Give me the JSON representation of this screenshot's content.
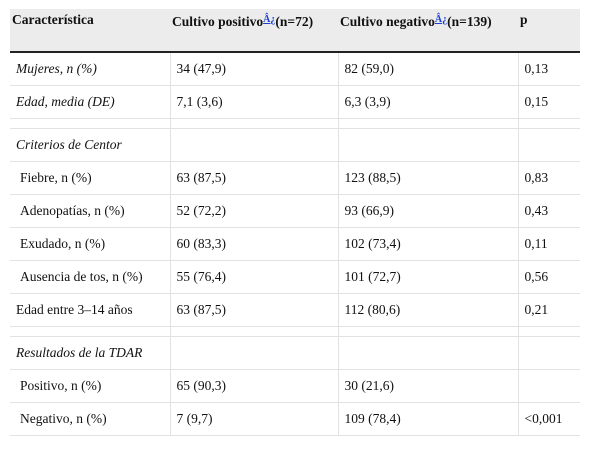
{
  "table": {
    "header": [
      {
        "text": "Característica"
      },
      {
        "text": "Cultivo positivo",
        "note": "Â¿",
        "n": "(n=72)"
      },
      {
        "text": "Cultivo negativo",
        "note": "Â¿",
        "n": "(n=139)"
      },
      {
        "text": "p"
      }
    ],
    "groups": [
      {
        "rows": [
          {
            "cells": [
              "Mujeres, n (%)",
              "34 (47,9)",
              "82 (59,0)",
              "0,13"
            ],
            "italic": true
          },
          {
            "cells": [
              "Edad, media (DE)",
              "7,1 (3,6)",
              "6,3 (3,9)",
              "0,15"
            ],
            "italic": true
          }
        ]
      },
      {
        "title": "Criterios de Centor",
        "rows": [
          {
            "cells": [
              "Fiebre, n (%)",
              "63 (87,5)",
              "123 (88,5)",
              "0,83"
            ],
            "indent": true
          },
          {
            "cells": [
              "Adenopatías, n (%)",
              "52 (72,2)",
              "93 (66,9)",
              "0,43"
            ],
            "indent": true
          },
          {
            "cells": [
              "Exudado, n (%)",
              "60 (83,3)",
              "102 (73,4)",
              "0,11"
            ],
            "indent": true
          },
          {
            "cells": [
              "Ausencia de tos, n (%)",
              "55 (76,4)",
              "101 (72,7)",
              "0,56"
            ],
            "indent": true
          },
          {
            "cells": [
              "Edad entre 3–14 años",
              "63 (87,5)",
              "112 (80,6)",
              "0,21"
            ]
          }
        ]
      },
      {
        "title": "Resultados de la TDAR",
        "rows": [
          {
            "cells": [
              "Positivo, n (%)",
              "65 (90,3)",
              "30 (21,6)",
              ""
            ],
            "indent": true
          },
          {
            "cells": [
              "Negativo, n (%)",
              "7 (9,7)",
              "109 (78,4)",
              "<0,001"
            ],
            "indent": true
          }
        ]
      }
    ]
  }
}
